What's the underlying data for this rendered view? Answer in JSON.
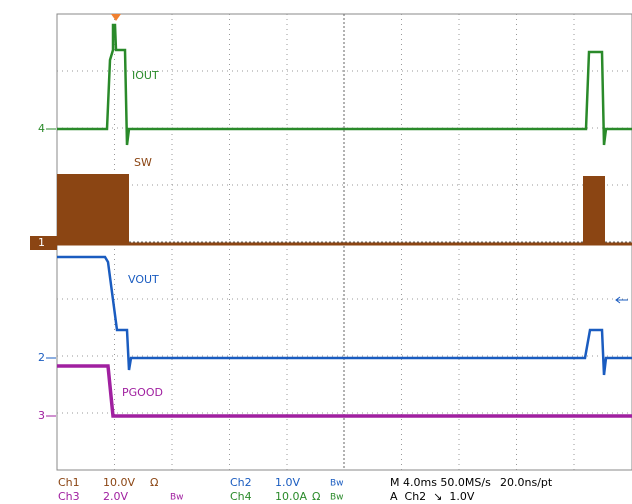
{
  "markers": {
    "ch4": "4",
    "ch1": "1",
    "ch2": "2",
    "ch3": "3"
  },
  "traces": {
    "iout": "IOUT",
    "sw": "SW",
    "vout": "VOUT",
    "pgood": "PGOOD"
  },
  "readout": {
    "row1": {
      "ch": "Ch1",
      "scale": "10.0V",
      "imp": "Ω",
      "ch_b": "Ch2",
      "scale_b": "1.0V",
      "bw_b": "Bw",
      "timebase": "M 4.0ms 50.0MS/s",
      "resolution": "20.0ns/pt"
    },
    "row2": {
      "ch": "Ch3",
      "scale": "2.0V",
      "bw": "Bw",
      "ch_b": "Ch4",
      "scale_b": "10.0A",
      "imp_b": "Ω",
      "bw_b": "Bw",
      "trigger": "A  Ch2  ↘  1.0V"
    }
  }
}
